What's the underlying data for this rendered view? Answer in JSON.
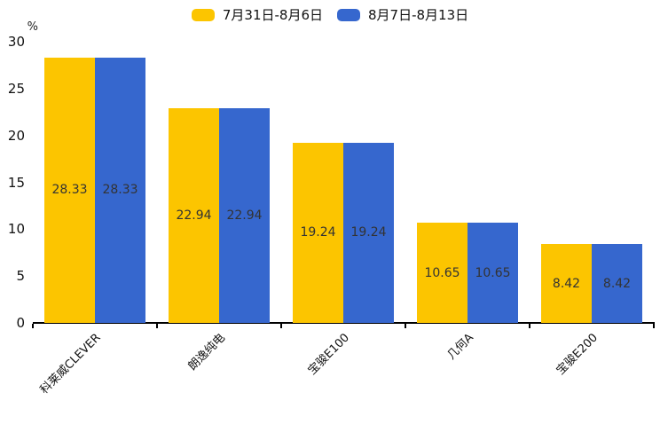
{
  "chart_data": {
    "type": "bar",
    "title": "",
    "categories": [
      "科莱威CLEVER",
      "朗逸纯电",
      "宝骏E100",
      "几何A",
      "宝骏E200"
    ],
    "series": [
      {
        "name": "7月31日-8月6日",
        "color": "#FCC500",
        "values": [
          28.33,
          22.94,
          19.24,
          10.65,
          8.42
        ]
      },
      {
        "name": "8月7日-8月13日",
        "color": "#3667CE",
        "values": [
          28.33,
          22.94,
          19.24,
          10.65,
          8.42
        ]
      }
    ],
    "value_labels": [
      "28.33",
      "22.94",
      "19.24",
      "10.65",
      "8.42"
    ],
    "xlabel": "",
    "ylabel": "%",
    "ylim": [
      0,
      30
    ],
    "yticks": [
      0,
      5,
      10,
      15,
      20,
      25,
      30
    ],
    "grid": false,
    "legend_position": "top-center",
    "value_label_position": "inside-center"
  },
  "colors": {
    "background": "#ffffff",
    "axis": "#000000",
    "tick_label": "#111111",
    "value_label": "#333333"
  }
}
